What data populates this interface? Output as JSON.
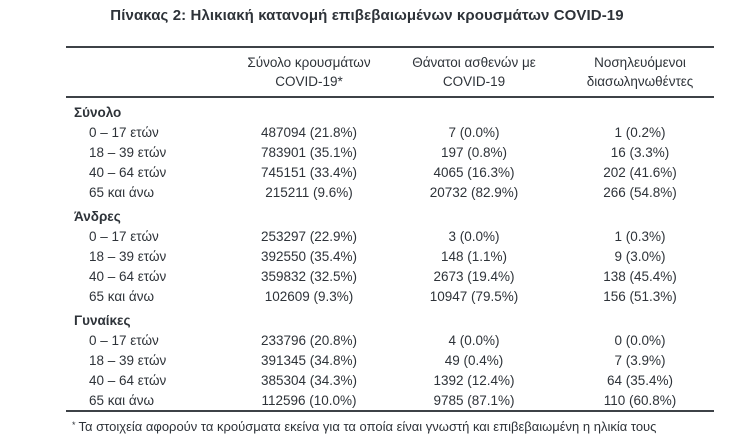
{
  "title": "Πίνακας 2: Ηλικιακή κατανομή επιβεβαιωμένων κρουσμάτων COVID-19",
  "table": {
    "columns": [
      {
        "line1": "Σύνολο κρουσμάτων",
        "line2": "COVID-19*"
      },
      {
        "line1": "Θάνατοι ασθενών με",
        "line2": "COVID-19"
      },
      {
        "line1": "Νοσηλευόμενοι",
        "line2": "διασωληνωθέντες"
      }
    ],
    "groups": [
      {
        "label": "Σύνολο",
        "rows": [
          {
            "label": "0 – 17 ετών",
            "cases": "487094 (21.8%)",
            "deaths": "7 (0.0%)",
            "intubated": "1 (0.2%)"
          },
          {
            "label": "18 – 39 ετών",
            "cases": "783901 (35.1%)",
            "deaths": "197 (0.8%)",
            "intubated": "16 (3.3%)"
          },
          {
            "label": "40 – 64 ετών",
            "cases": "745151 (33.4%)",
            "deaths": "4065 (16.3%)",
            "intubated": "202 (41.6%)"
          },
          {
            "label": "65 και άνω",
            "cases": "215211 (9.6%)",
            "deaths": "20732 (82.9%)",
            "intubated": "266 (54.8%)"
          }
        ]
      },
      {
        "label": "Άνδρες",
        "rows": [
          {
            "label": "0 – 17 ετών",
            "cases": "253297 (22.9%)",
            "deaths": "3 (0.0%)",
            "intubated": "1 (0.3%)"
          },
          {
            "label": "18 – 39 ετών",
            "cases": "392550 (35.4%)",
            "deaths": "148 (1.1%)",
            "intubated": "9 (3.0%)"
          },
          {
            "label": "40 – 64 ετών",
            "cases": "359832 (32.5%)",
            "deaths": "2673 (19.4%)",
            "intubated": "138 (45.4%)"
          },
          {
            "label": "65 και άνω",
            "cases": "102609 (9.3%)",
            "deaths": "10947 (79.5%)",
            "intubated": "156 (51.3%)"
          }
        ]
      },
      {
        "label": "Γυναίκες",
        "rows": [
          {
            "label": "0 – 17 ετών",
            "cases": "233796 (20.8%)",
            "deaths": "4 (0.0%)",
            "intubated": "0 (0.0%)"
          },
          {
            "label": "18 – 39 ετών",
            "cases": "391345 (34.8%)",
            "deaths": "49 (0.4%)",
            "intubated": "7 (3.9%)"
          },
          {
            "label": "40 – 64 ετών",
            "cases": "385304 (34.3%)",
            "deaths": "1392 (12.4%)",
            "intubated": "64 (35.4%)"
          },
          {
            "label": "65 και άνω",
            "cases": "112596 (10.0%)",
            "deaths": "9785 (87.1%)",
            "intubated": "110 (60.8%)"
          }
        ]
      }
    ]
  },
  "footnote": {
    "marker": "*",
    "text": "Τα στοιχεία αφορούν τα κρούσματα εκείνα για τα οποία είναι γνωστή και επιβεβαιωμένη η ηλικία τους"
  },
  "colors": {
    "text": "#2e3339",
    "rule": "#3d4247",
    "background": "#ffffff"
  }
}
